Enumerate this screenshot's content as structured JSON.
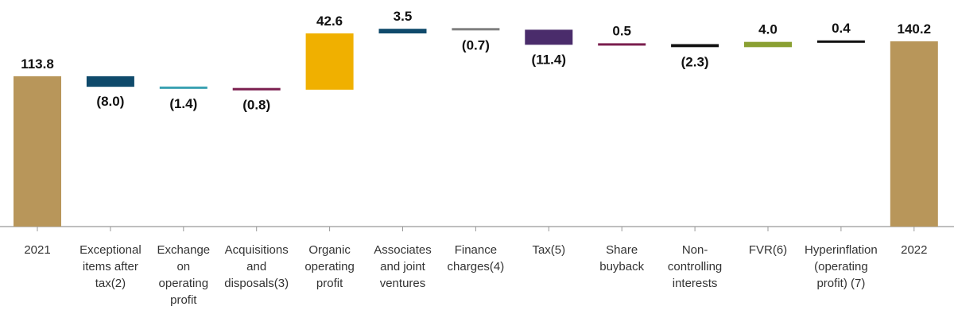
{
  "chart_data": {
    "type": "waterfall",
    "title": "",
    "xlabel": "",
    "ylabel": "",
    "ylim": [
      0,
      145
    ],
    "grid": false,
    "categories": [
      [
        "2021"
      ],
      [
        "Exceptional",
        "items after",
        "tax(2)"
      ],
      [
        "Exchange",
        "on",
        "operating",
        "profit"
      ],
      [
        "Acquisitions",
        "and",
        "disposals(3)"
      ],
      [
        "Organic",
        "operating",
        "profit"
      ],
      [
        "Associates",
        "and joint",
        "ventures"
      ],
      [
        "Finance",
        "charges(4)"
      ],
      [
        "Tax(5)"
      ],
      [
        "Share",
        "buyback"
      ],
      [
        "Non-",
        "controlling",
        "interests"
      ],
      [
        "FVR(6)"
      ],
      [
        "Hyperinflation",
        "(operating",
        "profit) (7)"
      ],
      [
        "2022"
      ]
    ],
    "values": [
      113.8,
      -8.0,
      -1.4,
      -0.8,
      42.6,
      3.5,
      -0.7,
      -11.4,
      0.5,
      -2.3,
      4.0,
      0.4,
      140.2
    ],
    "value_labels": [
      "113.8",
      "(8.0)",
      "(1.4)",
      "(0.8)",
      "42.6",
      "3.5",
      "(0.7)",
      "(11.4)",
      "0.5",
      "(2.3)",
      "4.0",
      "0.4",
      "140.2"
    ],
    "kinds": [
      "total",
      "delta",
      "delta",
      "delta",
      "delta",
      "delta",
      "delta",
      "delta",
      "delta",
      "delta",
      "delta",
      "delta",
      "total"
    ],
    "colors": [
      "#B8965A",
      "#0F4A6B",
      "#3AA1B2",
      "#7A1E4E",
      "#F0B000",
      "#0F4A6B",
      "#7F7F7F",
      "#4A2C6B",
      "#7A1E4E",
      "#111111",
      "#8AA032",
      "#111111",
      "#B8965A"
    ]
  }
}
